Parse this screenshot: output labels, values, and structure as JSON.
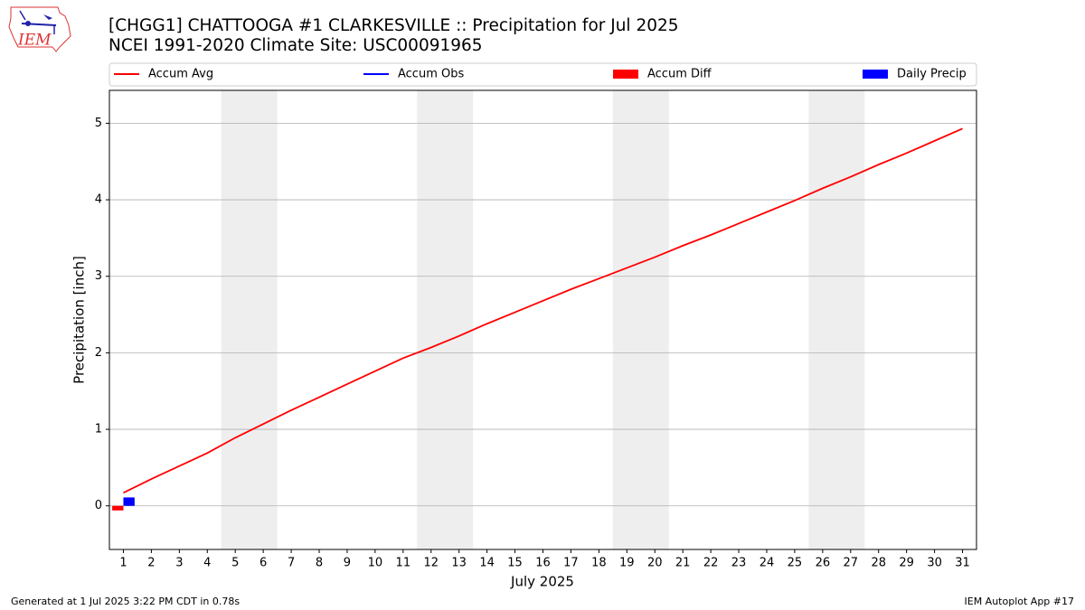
{
  "chart_data": {
    "type": "line",
    "title": "[CHGG1] CHATTOOGA #1 CLARKESVILLE :: Precipitation for Jul 2025",
    "subtitle": "NCEI 1991-2020 Climate Site: USC00091965",
    "logo_text": "IEM",
    "x_label": "July 2025",
    "y_label": "Precipitation [inch]",
    "footer_left": "Generated at 1 Jul 2025 3:22 PM CDT in 0.78s",
    "footer_right": "IEM Autoplot App #17",
    "x": [
      1,
      2,
      3,
      4,
      5,
      6,
      7,
      8,
      9,
      10,
      11,
      12,
      13,
      14,
      15,
      16,
      17,
      18,
      19,
      20,
      21,
      22,
      23,
      24,
      25,
      26,
      27,
      28,
      29,
      30,
      31
    ],
    "xlim": [
      0.5,
      31.5
    ],
    "ylim": [
      -0.57,
      5.43
    ],
    "yticks": [
      0,
      1,
      2,
      3,
      4,
      5
    ],
    "grid": true,
    "weekend_spans": [
      [
        4.5,
        6.5
      ],
      [
        11.5,
        13.5
      ],
      [
        18.5,
        20.5
      ],
      [
        25.5,
        27.5
      ]
    ],
    "series": [
      {
        "name": "Accum Avg",
        "kind": "line",
        "color": "#ff0000",
        "values": [
          0.17,
          0.35,
          0.52,
          0.69,
          0.89,
          1.07,
          1.25,
          1.42,
          1.59,
          1.76,
          1.93,
          2.07,
          2.22,
          2.38,
          2.53,
          2.68,
          2.83,
          2.97,
          3.11,
          3.25,
          3.4,
          3.54,
          3.69,
          3.84,
          3.99,
          4.15,
          4.3,
          4.46,
          4.61,
          4.77,
          4.93
        ]
      },
      {
        "name": "Accum Obs",
        "kind": "line",
        "color": "#0000ff",
        "values": [
          0.11,
          null,
          null,
          null,
          null,
          null,
          null,
          null,
          null,
          null,
          null,
          null,
          null,
          null,
          null,
          null,
          null,
          null,
          null,
          null,
          null,
          null,
          null,
          null,
          null,
          null,
          null,
          null,
          null,
          null,
          null
        ]
      },
      {
        "name": "Accum Diff",
        "kind": "bar",
        "color": "#ff0000",
        "values": [
          -0.06,
          null,
          null,
          null,
          null,
          null,
          null,
          null,
          null,
          null,
          null,
          null,
          null,
          null,
          null,
          null,
          null,
          null,
          null,
          null,
          null,
          null,
          null,
          null,
          null,
          null,
          null,
          null,
          null,
          null,
          null
        ]
      },
      {
        "name": "Daily Precip",
        "kind": "bar",
        "color": "#0000ff",
        "values": [
          0.11,
          null,
          null,
          null,
          null,
          null,
          null,
          null,
          null,
          null,
          null,
          null,
          null,
          null,
          null,
          null,
          null,
          null,
          null,
          null,
          null,
          null,
          null,
          null,
          null,
          null,
          null,
          null,
          null,
          null,
          null
        ]
      }
    ]
  }
}
